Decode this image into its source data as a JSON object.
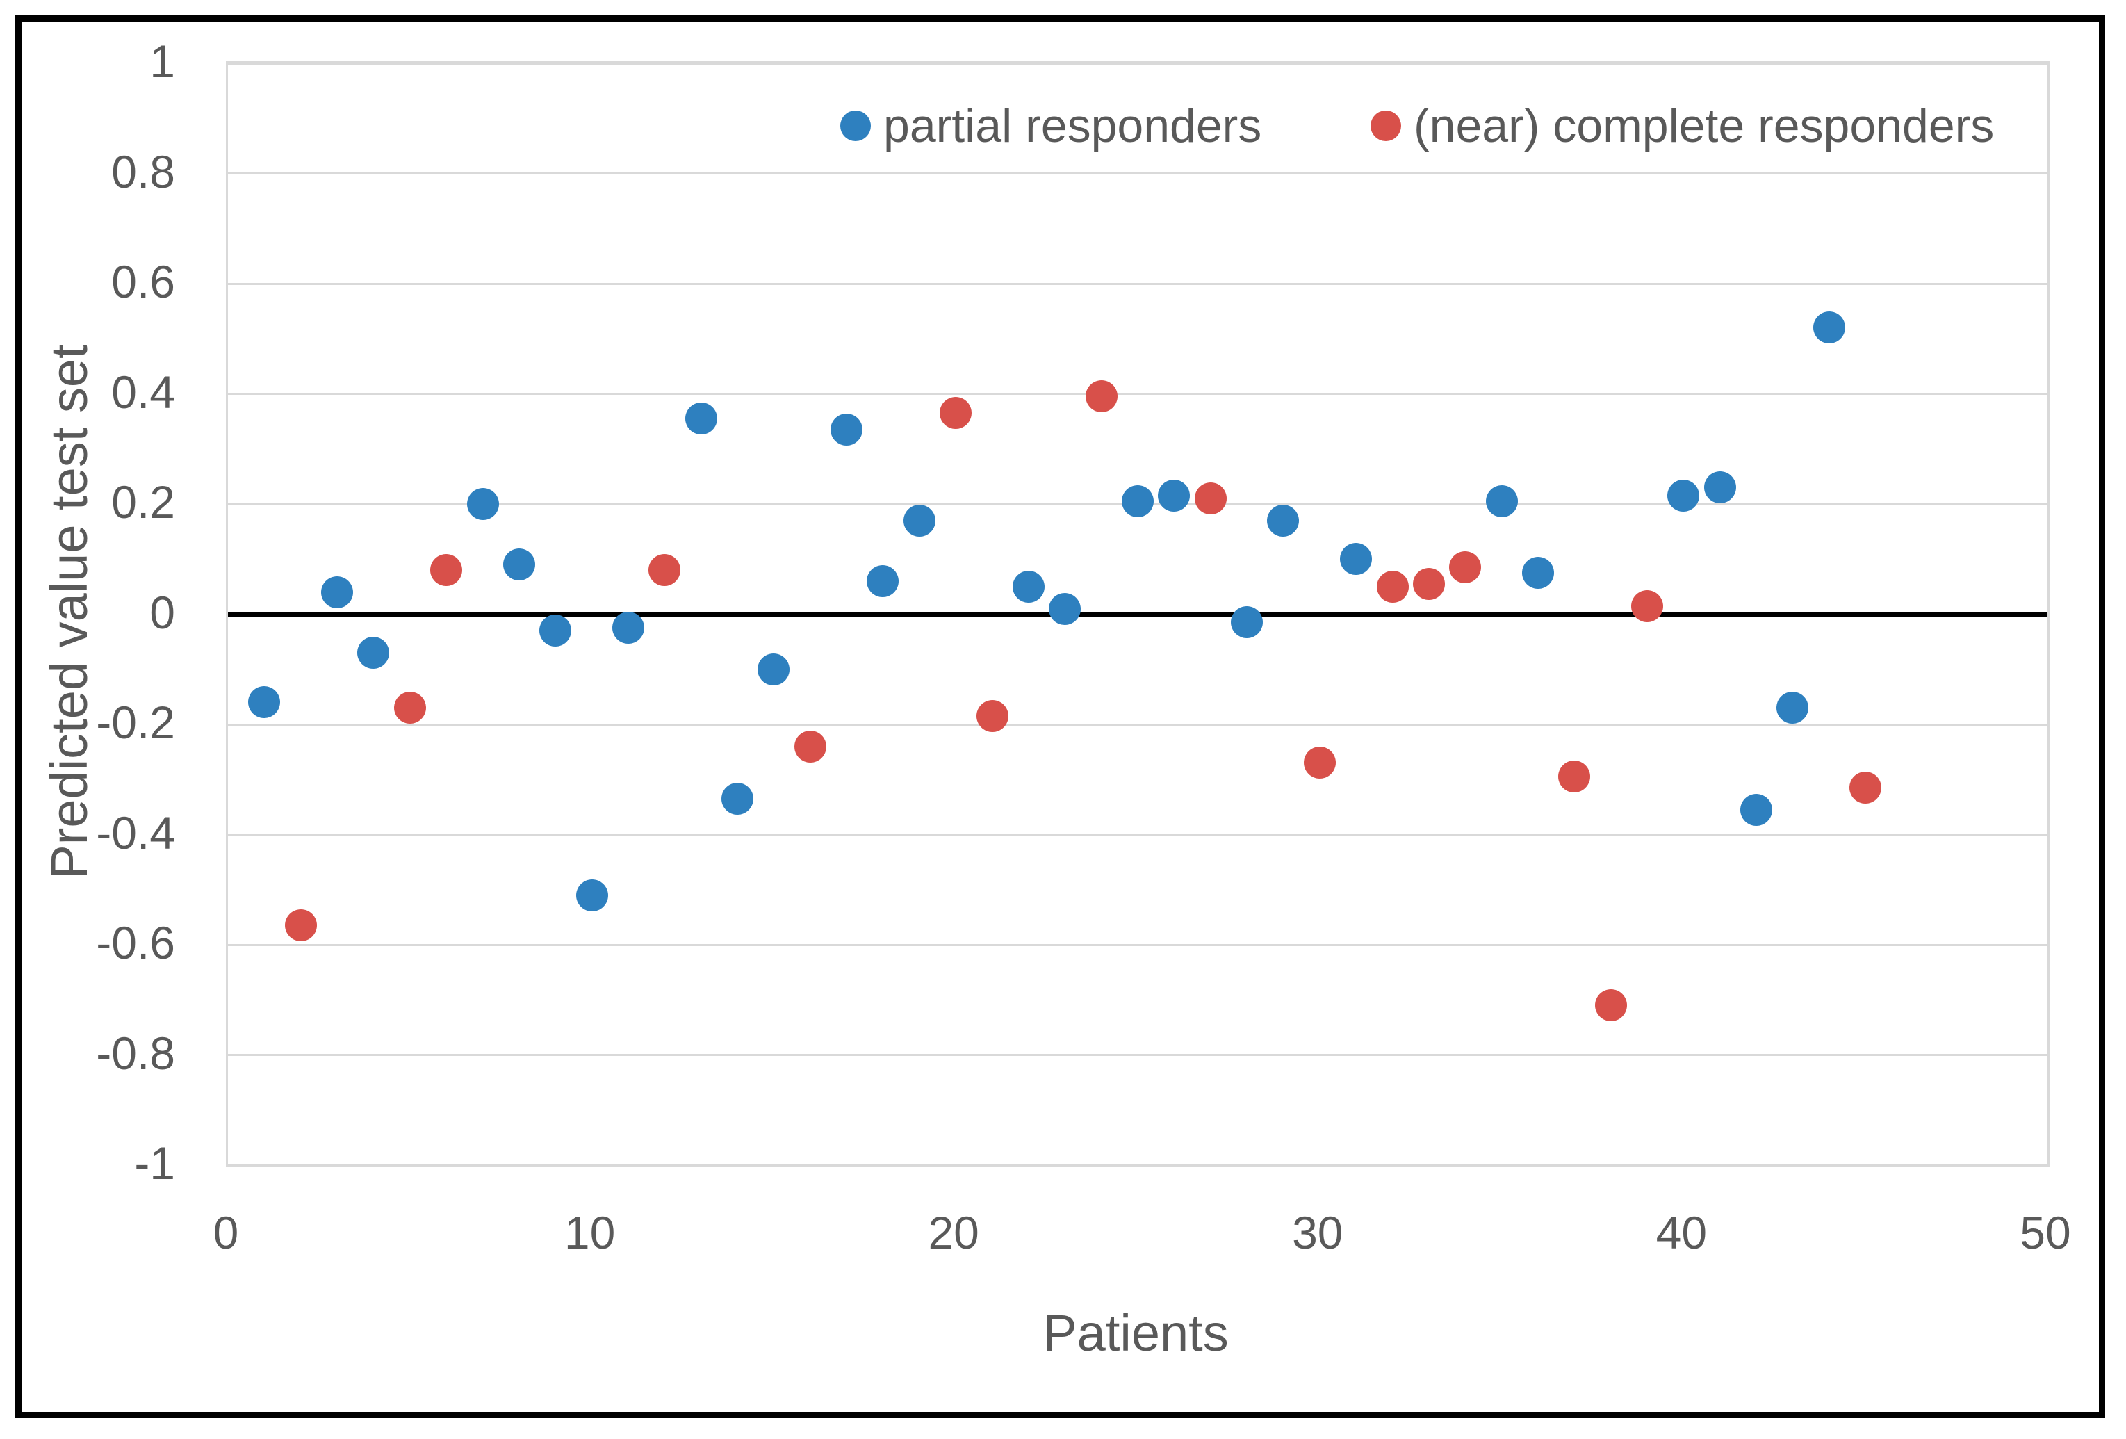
{
  "chart_data": {
    "type": "scatter",
    "title": "",
    "xlabel": "Patients",
    "ylabel": "Predicted value test set",
    "xlim": [
      0,
      50
    ],
    "ylim": [
      -1,
      1
    ],
    "x_tick_labels": [
      "0",
      "10",
      "20",
      "30",
      "40",
      "50"
    ],
    "x_tick_values": [
      0,
      10,
      20,
      30,
      40,
      50
    ],
    "y_tick_labels": [
      "1",
      "0.8",
      "0.6",
      "0.4",
      "0.2",
      "0",
      "-0.2",
      "-0.4",
      "-0.6",
      "-0.8",
      "-1"
    ],
    "y_tick_values": [
      1,
      0.8,
      0.6,
      0.4,
      0.2,
      0,
      -0.2,
      -0.4,
      -0.6,
      -0.8,
      -1
    ],
    "grid": "horizontal-only",
    "gridline_color": "#d9d9d9",
    "zero_line": true,
    "zero_line_color": "#000000",
    "legend_position": "top-inside",
    "text_color": "#595959",
    "series": [
      {
        "name": "partial responders",
        "color": "#2e80bf",
        "points": [
          {
            "x": 1,
            "y": -0.16
          },
          {
            "x": 3,
            "y": 0.04
          },
          {
            "x": 4,
            "y": -0.07
          },
          {
            "x": 7,
            "y": 0.2
          },
          {
            "x": 8,
            "y": 0.09
          },
          {
            "x": 9,
            "y": -0.03
          },
          {
            "x": 10,
            "y": -0.51
          },
          {
            "x": 11,
            "y": -0.025
          },
          {
            "x": 13,
            "y": 0.355
          },
          {
            "x": 14,
            "y": -0.335
          },
          {
            "x": 15,
            "y": -0.1
          },
          {
            "x": 17,
            "y": 0.335
          },
          {
            "x": 18,
            "y": 0.06
          },
          {
            "x": 19,
            "y": 0.17
          },
          {
            "x": 22,
            "y": 0.05
          },
          {
            "x": 23,
            "y": 0.01
          },
          {
            "x": 25,
            "y": 0.205
          },
          {
            "x": 26,
            "y": 0.215
          },
          {
            "x": 28,
            "y": -0.015
          },
          {
            "x": 29,
            "y": 0.17
          },
          {
            "x": 31,
            "y": 0.1
          },
          {
            "x": 35,
            "y": 0.205
          },
          {
            "x": 36,
            "y": 0.075
          },
          {
            "x": 40,
            "y": 0.215
          },
          {
            "x": 41,
            "y": 0.23
          },
          {
            "x": 42,
            "y": -0.355
          },
          {
            "x": 43,
            "y": -0.17
          },
          {
            "x": 44,
            "y": 0.52
          }
        ]
      },
      {
        "name": "(near) complete responders",
        "color": "#d8504a",
        "points": [
          {
            "x": 2,
            "y": -0.565
          },
          {
            "x": 5,
            "y": -0.17
          },
          {
            "x": 6,
            "y": 0.08
          },
          {
            "x": 12,
            "y": 0.08
          },
          {
            "x": 16,
            "y": -0.24
          },
          {
            "x": 20,
            "y": 0.365
          },
          {
            "x": 21,
            "y": -0.185
          },
          {
            "x": 24,
            "y": 0.395
          },
          {
            "x": 27,
            "y": 0.21
          },
          {
            "x": 30,
            "y": -0.27
          },
          {
            "x": 32,
            "y": 0.05
          },
          {
            "x": 33,
            "y": 0.055
          },
          {
            "x": 34,
            "y": 0.085
          },
          {
            "x": 37,
            "y": -0.295
          },
          {
            "x": 38,
            "y": -0.71
          },
          {
            "x": 39,
            "y": 0.015
          },
          {
            "x": 45,
            "y": -0.315
          }
        ]
      }
    ]
  }
}
